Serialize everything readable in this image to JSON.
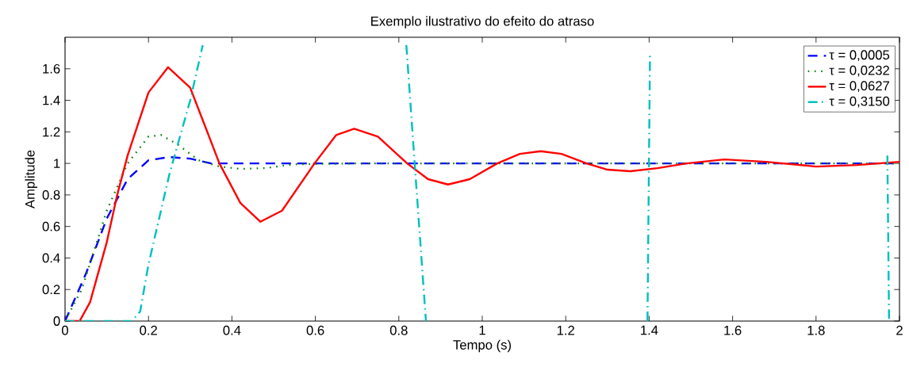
{
  "chart_data": {
    "type": "line",
    "title": "Exemplo ilustrativo do efeito do atraso",
    "xlabel": "Tempo (s)",
    "ylabel": "Amplitude",
    "xlim": [
      0,
      2
    ],
    "ylim": [
      0,
      1.8
    ],
    "xticks": [
      0,
      0.2,
      0.4,
      0.6,
      0.8,
      1,
      1.2,
      1.4,
      1.6,
      1.8,
      2
    ],
    "yticks": [
      0,
      0.2,
      0.4,
      0.6,
      0.8,
      1,
      1.2,
      1.4,
      1.6
    ],
    "grid": false,
    "legend": "top right",
    "marker": "none",
    "series": [
      {
        "name": "τ = 0,0005",
        "color": "#0000ff",
        "line_style": "dashed",
        "x": [
          0,
          0.05,
          0.1,
          0.15,
          0.2,
          0.25,
          0.3,
          0.35,
          0.5,
          2
        ],
        "values": [
          0,
          0.3,
          0.65,
          0.9,
          1.02,
          1.04,
          1.03,
          1.0,
          1.0,
          1.0
        ]
      },
      {
        "name": "τ = 0,0232",
        "color": "#008000",
        "line_style": "dotted",
        "x": [
          0,
          0.04,
          0.1,
          0.15,
          0.2,
          0.23,
          0.27,
          0.32,
          0.37,
          0.42,
          0.48,
          0.55,
          0.7,
          2
        ],
        "values": [
          0,
          0.2,
          0.7,
          1.0,
          1.17,
          1.18,
          1.12,
          1.02,
          0.98,
          0.965,
          0.97,
          0.995,
          1.0,
          1.0
        ]
      },
      {
        "name": "τ = 0,0627",
        "color": "#ff0000",
        "line_style": "solid",
        "x": [
          0,
          0.035,
          0.06,
          0.1,
          0.125,
          0.15,
          0.2,
          0.247,
          0.3,
          0.37,
          0.42,
          0.468,
          0.52,
          0.598,
          0.65,
          0.693,
          0.75,
          0.82,
          0.87,
          0.918,
          0.97,
          1.036,
          1.09,
          1.14,
          1.19,
          1.25,
          1.3,
          1.355,
          1.42,
          1.49,
          1.58,
          1.68,
          1.8,
          1.9,
          2
        ],
        "values": [
          0,
          0,
          0.12,
          0.5,
          0.8,
          1.05,
          1.45,
          1.61,
          1.48,
          1.0,
          0.75,
          0.63,
          0.7,
          1.0,
          1.18,
          1.22,
          1.17,
          1.0,
          0.9,
          0.866,
          0.9,
          1.0,
          1.06,
          1.077,
          1.06,
          1.0,
          0.96,
          0.95,
          0.97,
          1.0,
          1.025,
          1.01,
          0.98,
          0.99,
          1.01
        ]
      },
      {
        "name": "τ = 0,3150",
        "color": "#00bfbf",
        "line_style": "dashdot",
        "x": [
          0,
          0.16,
          0.18,
          0.2,
          0.25,
          0.3,
          0.33,
          0.5,
          0.818,
          0.838,
          0.865,
          1.1,
          1.396,
          1.402,
          1.6,
          1.971,
          1.975
        ],
        "values": [
          0,
          0,
          0.06,
          0.36,
          0.93,
          1.4,
          1.75,
          null,
          1.75,
          1.0,
          0,
          null,
          0,
          1.7,
          null,
          1.05,
          0
        ]
      }
    ]
  }
}
